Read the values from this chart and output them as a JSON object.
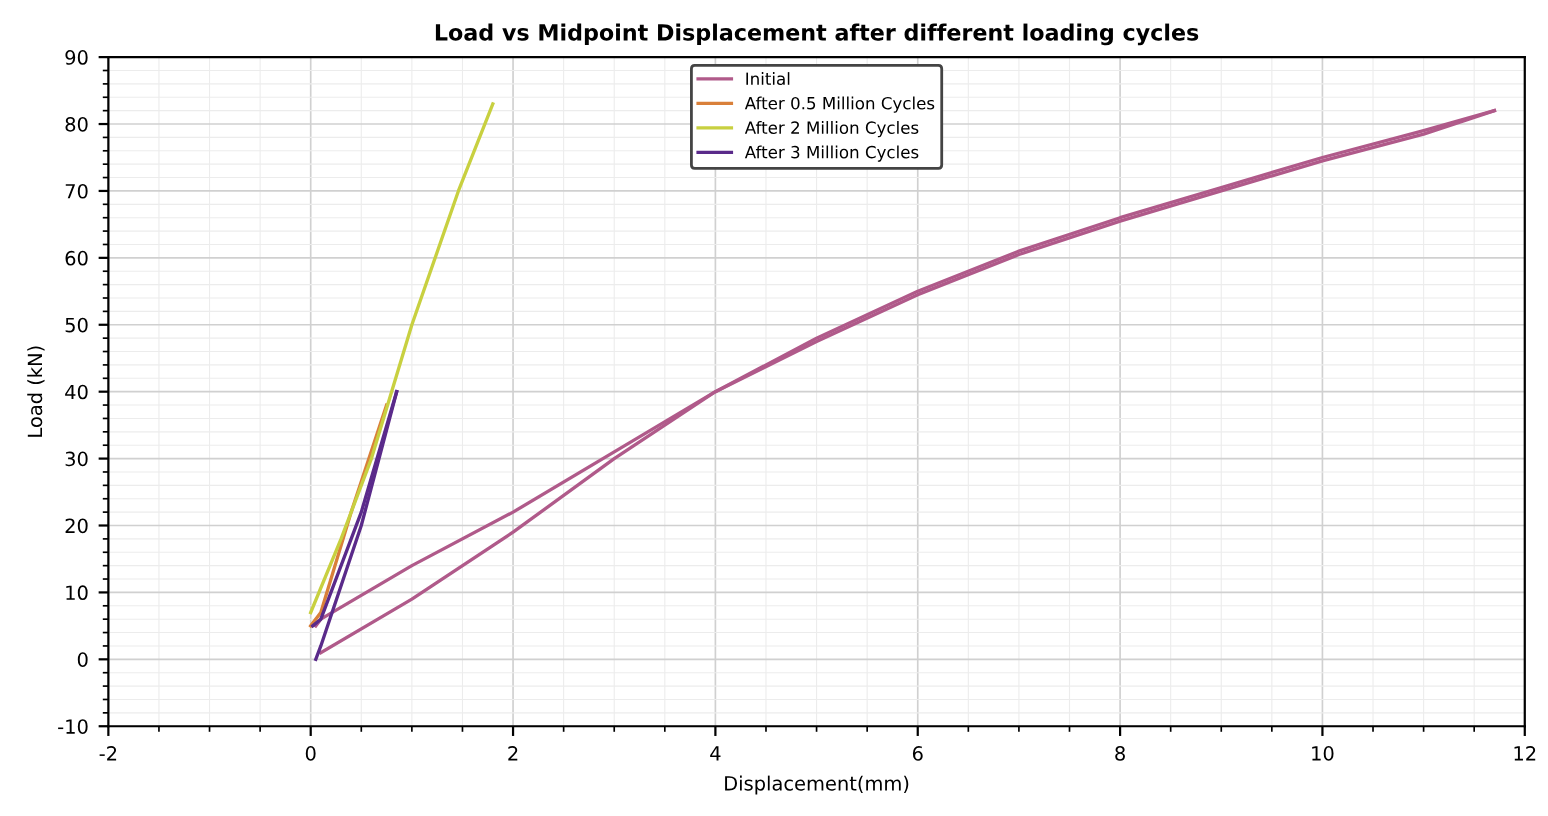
{
  "chart_data": {
    "type": "line",
    "title": "Load vs Midpoint Displacement after different loading cycles",
    "xlabel": "Displacement(mm)",
    "ylabel": "Load (kN)",
    "xlim": [
      -2,
      12
    ],
    "xticks": [
      -2,
      0,
      2,
      4,
      6,
      8,
      10,
      12
    ],
    "ylim": [
      -10,
      90
    ],
    "yticks": [
      -10,
      0,
      10,
      20,
      30,
      40,
      50,
      60,
      70,
      80,
      90
    ],
    "grid": true,
    "legend": "top",
    "marker": "none",
    "line_style": "solid",
    "series": [
      {
        "name": "Initial",
        "color": "#b05a8a",
        "x": [
          0.05,
          0.1,
          1,
          2,
          3,
          4,
          5,
          6,
          7,
          8,
          9,
          10,
          11,
          11.7
        ],
        "values": [
          5,
          6,
          14,
          22,
          31,
          40,
          48,
          55,
          61,
          66,
          70.5,
          75,
          79,
          82
        ]
      },
      {
        "color": "#b05a8a",
        "x": [
          0.1,
          1,
          2,
          3,
          4,
          5,
          6,
          7,
          8,
          9,
          10,
          11,
          11.7
        ],
        "values": [
          1,
          9,
          19,
          30,
          40,
          47.5,
          54.5,
          60.5,
          65.5,
          70,
          74.5,
          78.5,
          82
        ]
      },
      {
        "name": "After 0.5 Million Cycles",
        "color": "#d9803a",
        "x": [
          0,
          0.1,
          0.4,
          0.75
        ],
        "values": [
          5,
          7,
          22,
          38
        ]
      },
      {
        "name": "After 2 Million Cycles",
        "color": "#c8d040",
        "x": [
          0,
          0.3,
          0.6,
          1.0,
          1.46,
          1.8
        ],
        "values": [
          7,
          18,
          30,
          50,
          70,
          83
        ]
      },
      {
        "name": "After 3 Million Cycles",
        "color": "#5a2a8a",
        "x": [
          0.02,
          0.1,
          0.5,
          0.85
        ],
        "values": [
          5,
          6,
          22,
          40
        ]
      },
      {
        "color": "#5a2a8a",
        "x": [
          0.05,
          0.1,
          0.5,
          0.85
        ],
        "values": [
          0,
          2,
          20,
          40
        ]
      }
    ]
  }
}
